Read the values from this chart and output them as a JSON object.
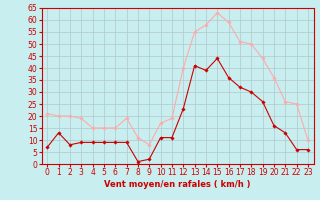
{
  "x": [
    0,
    1,
    2,
    3,
    4,
    5,
    6,
    7,
    8,
    9,
    10,
    11,
    12,
    13,
    14,
    15,
    16,
    17,
    18,
    19,
    20,
    21,
    22,
    23
  ],
  "moyen": [
    7,
    13,
    8,
    9,
    9,
    9,
    9,
    9,
    1,
    2,
    11,
    11,
    23,
    41,
    39,
    44,
    36,
    32,
    30,
    26,
    16,
    13,
    6,
    6
  ],
  "rafales": [
    21,
    20,
    20,
    19,
    15,
    15,
    15,
    19,
    11,
    8,
    17,
    19,
    40,
    55,
    58,
    63,
    59,
    51,
    50,
    44,
    36,
    26,
    25,
    10
  ],
  "color_moyen": "#cc0000",
  "color_rafales": "#ffaaaa",
  "bg_color": "#c8eef0",
  "grid_color": "#b0c8cc",
  "xlabel": "Vent moyen/en rafales ( km/h )",
  "xlabel_color": "#cc0000",
  "axis_color": "#cc0000",
  "tick_color": "#cc0000",
  "ylim": [
    0,
    65
  ],
  "yticks": [
    0,
    5,
    10,
    15,
    20,
    25,
    30,
    35,
    40,
    45,
    50,
    55,
    60,
    65
  ],
  "xlim": [
    -0.5,
    23.5
  ],
  "label_fontsize": 6,
  "tick_fontsize": 5.5
}
